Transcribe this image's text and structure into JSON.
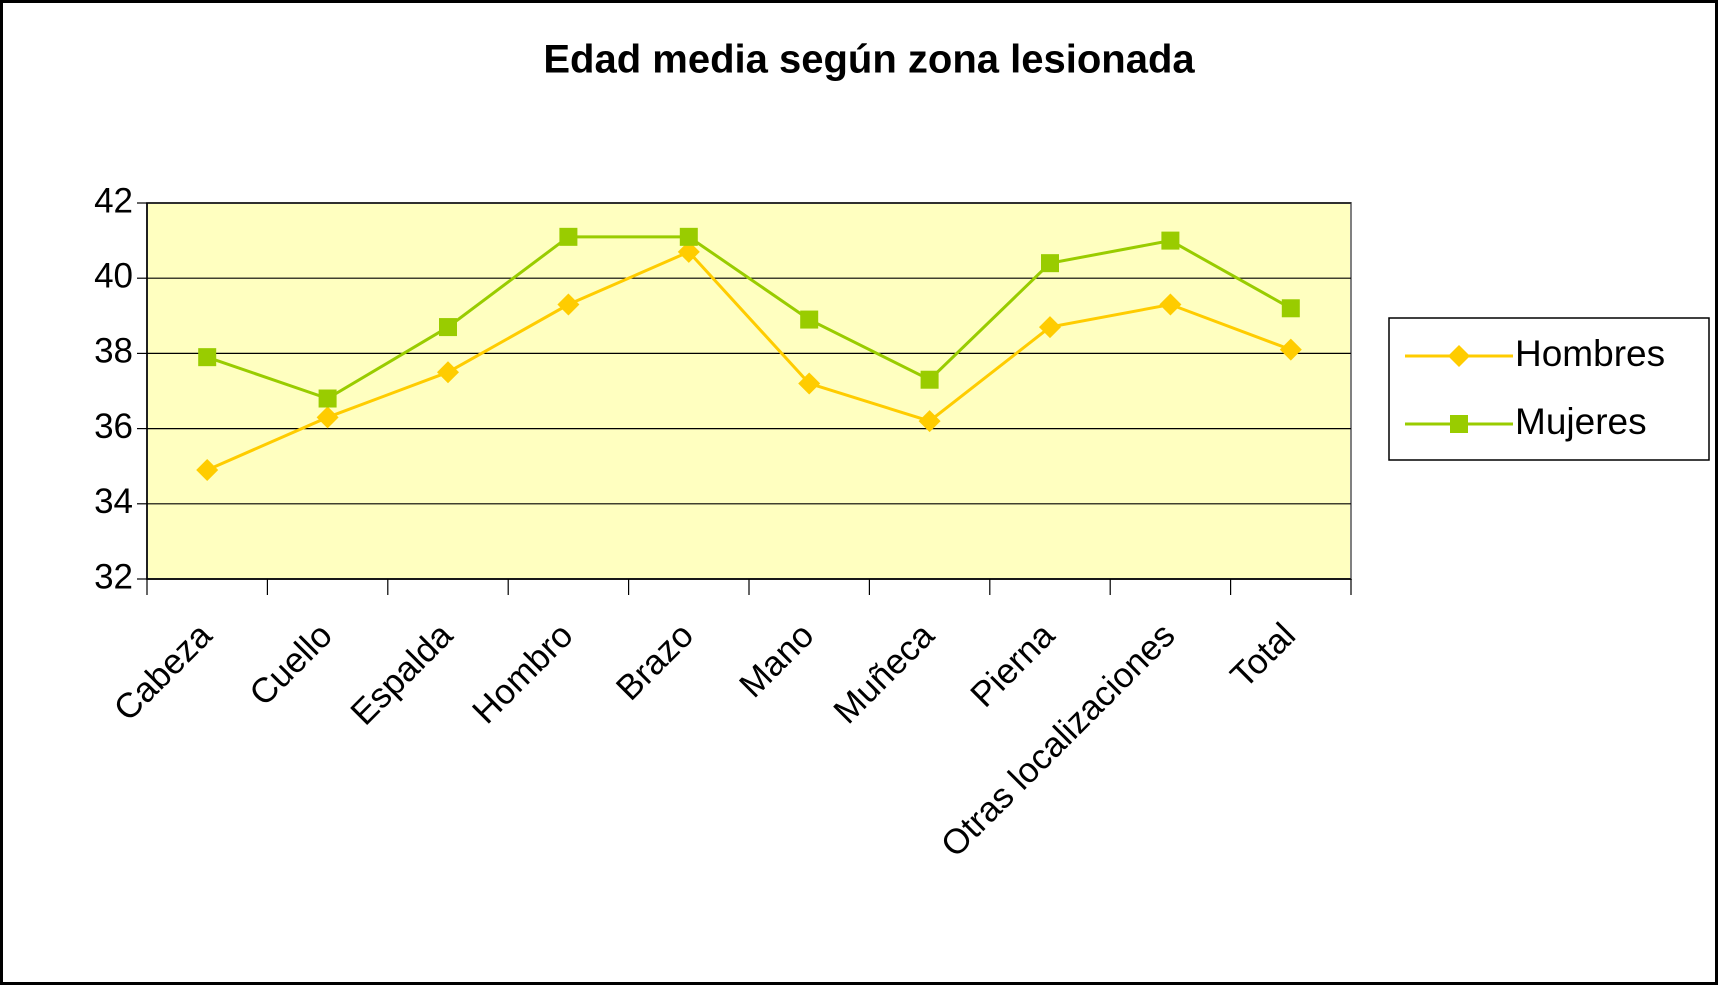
{
  "chart_data": {
    "type": "line",
    "title": "Edad media según zona lesionada",
    "categories": [
      "Cabeza",
      "Cuello",
      "Espalda",
      "Hombro",
      "Brazo",
      "Mano",
      "Muñeca",
      "Pierna",
      "Otras localizaciones",
      "Total"
    ],
    "series": [
      {
        "name": "Hombres",
        "color": "#ffcc00",
        "marker": "diamond",
        "values": [
          34.9,
          36.3,
          37.5,
          39.3,
          40.7,
          37.2,
          36.2,
          38.7,
          39.3,
          38.1
        ]
      },
      {
        "name": "Mujeres",
        "color": "#99cc00",
        "marker": "square",
        "values": [
          37.9,
          36.8,
          38.7,
          41.1,
          41.1,
          38.9,
          37.3,
          40.4,
          41.0,
          39.2
        ]
      }
    ],
    "ylim": [
      32,
      42
    ],
    "yticks": [
      32,
      34,
      36,
      38,
      40,
      42
    ],
    "grid": true,
    "legend": "right",
    "plot_background": "#ffffc0"
  }
}
